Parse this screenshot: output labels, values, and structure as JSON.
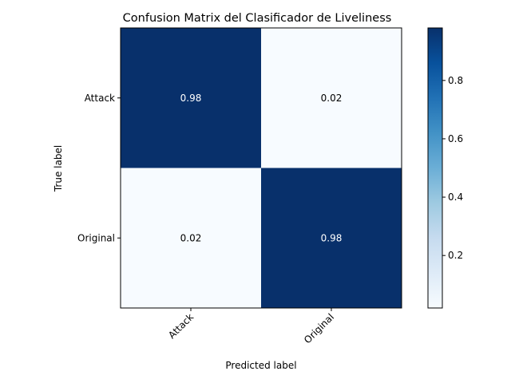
{
  "chart_data": {
    "type": "heatmap",
    "title": "Confusion Matrix del Clasificador de Liveliness",
    "xlabel": "Predicted label",
    "ylabel": "True label",
    "x_categories": [
      "Attack",
      "Original"
    ],
    "y_categories": [
      "Attack",
      "Original"
    ],
    "values": [
      [
        0.98,
        0.02
      ],
      [
        0.02,
        0.98
      ]
    ],
    "cell_labels": [
      [
        "0.98",
        "0.02"
      ],
      [
        "0.02",
        "0.98"
      ]
    ],
    "colormap": "Blues",
    "color_low": "#f7fbff",
    "color_high": "#08306b",
    "colorbar": {
      "vmin": 0.02,
      "vmax": 0.98,
      "ticks": [
        0.2,
        0.4,
        0.6,
        0.8
      ],
      "tick_labels": [
        "0.2",
        "0.4",
        "0.6",
        "0.8"
      ]
    },
    "grid": false
  }
}
